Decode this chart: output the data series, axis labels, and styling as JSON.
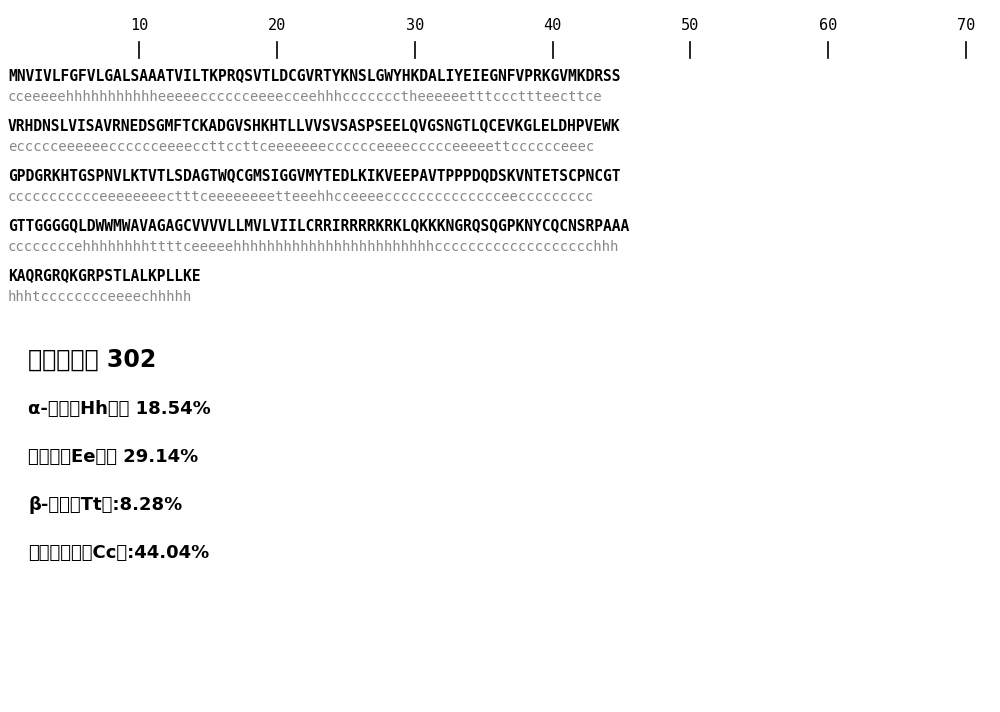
{
  "background_color": "#ffffff",
  "ruler_numbers": [
    10,
    20,
    30,
    40,
    50,
    60,
    70
  ],
  "seq_line1": "MNVIVLFGFVLGALSAAATVIL TKPRQSVTLDCGVRTYKNSLGWYHKDALIYEIEGNFVPRKGVMKDRSS",
  "seq_line2": "VRHDNSLVISAVRNEDSGMFTCKADGVSHKHTLLVVSVSASPSEELQVGSNGTLQCEVKGLELDHPVEWK",
  "seq_line3": "GPDGRKHTGSPNVLKTVTLSDAGTWQCGMSIGGVMYTEDLKIKVEEPAVTPPPDQDSKVNTETSCPNCGT",
  "seq_line4": "GTTGGGGQLDWWMWAVAGAGCVVVVLLMVLVIILCRRIRRRRKRKLQKKKNGRQSQGPKNYCQCNSRPAAA",
  "seq_line5": "KAQRGRQKGRPSTLALKPLLKE",
  "ann_line1": "cceeeeehhhhhhhhhhheeeeecc cccceeee cceehhh ccccccctheeeeeetttccctttee cttce",
  "ann_line2": "eccccceeeeeecc cccceeeecc ttccttceeeeeeecc cccceeee ccccceeeeettcccccceee c",
  "ann_line3": "ccccccccccceeeeeeee ctttceeeeeeee tteeehh cceeeeccccccccccccccee cccccccc c",
  "ann_line4": "ccccccccehhhhhhhhttt tceeeee hhhhhhhhhhhhhhhhhhhhhhhh ccccccccccccccccccchhh",
  "ann_line5": "hhhtcccccccceeeechhhhh",
  "stats_label": "序列长度： 302",
  "stat1": "α-螺旋（Hh）： 18.54%",
  "stat2": "延伸链（Ee）： 29.14%",
  "stat3": "β-转角（Tt）:8.28%",
  "stat4": "无规则卷曲（Cc）:44.04%",
  "seq_color": "#000000",
  "ann_color": "#888888",
  "stats_color": "#000000",
  "seq_fontsize": 10.5,
  "ann_fontsize": 10.0,
  "ruler_fontsize": 11.0,
  "stat_label_fontsize": 17,
  "stat_item_fontsize": 13
}
